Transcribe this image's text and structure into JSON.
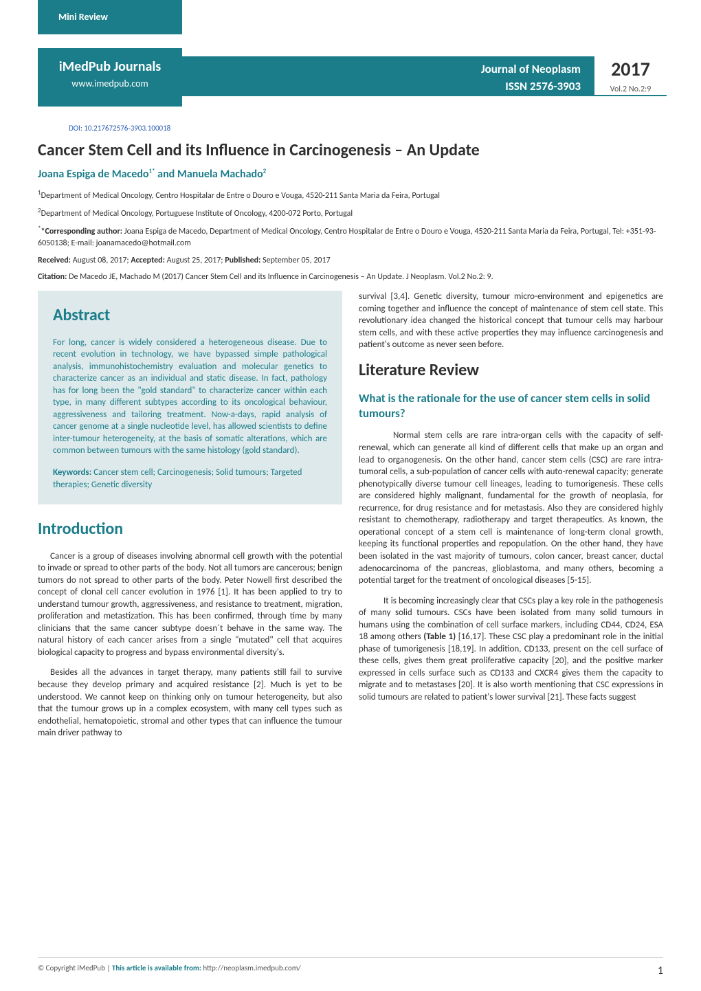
{
  "header": {
    "mini_review_label": "Mini Review",
    "publisher_name": "iMedPub Journals",
    "publisher_url": "www.imedpub.com",
    "journal_name": "Journal of Neoplasm",
    "issn_label": "ISSN 2576-3903",
    "year": "2017",
    "volume_issue": "Vol.2 No.2:9"
  },
  "doi": "DOI: 10.217672576-3903.100018",
  "title": "Cancer Stem Cell and its Influence in Carcinogenesis – An Update",
  "authors": "Joana Espiga de Macedo1* and Manuela Machado2",
  "affiliations": [
    "1Department of Medical Oncology, Centro Hospitalar de Entre o Douro e Vouga, 4520-211 Santa Maria da Feira, Portugal",
    "2Department of Medical Oncology, Portuguese Institute of Oncology, 4200-072 Porto, Portugal"
  ],
  "corresponding_label": "*Corresponding author:",
  "corresponding_text": " Joana Espiga de Macedo, Department of Medical Oncology, Centro Hospitalar de Entre o Douro e Vouga, 4520-211 Santa Maria da Feira, Portugal, Tel: +351-93-6050138; E-mail: joanamacedo@hotmail.com",
  "dates": {
    "received_label": "Received:",
    "received": " August 08, 2017; ",
    "accepted_label": "Accepted:",
    "accepted": " August 25, 2017; ",
    "published_label": "Published:",
    "published": " September 05, 2017"
  },
  "citation_label": "Citation:",
  "citation_text": " De Macedo JE, Machado M (2017) Cancer Stem Cell and its Influence in Carcinogenesis – An Update. J Neoplasm. Vol.2 No.2: 9.",
  "abstract": {
    "heading": "Abstract",
    "body": "For long, cancer is widely considered a heterogeneous disease. Due to recent evolution in technology, we have bypassed simple pathological analysis, immunohistochemistry evaluation and molecular genetics to characterize cancer as an individual and static disease. In fact, pathology has for long been the \"gold standard\" to characterize cancer within each type, in many different subtypes according to its oncological behaviour, aggressiveness and tailoring treatment. Now-a-days, rapid analysis of cancer genome at a single nucleotide level, has allowed scientists to define inter-tumour heterogeneity, at the basis of somatic alterations, which are common between tumours with the same histology (gold standard).",
    "keywords_label": "Keywords:",
    "keywords": " Cancer stem cell; Carcinogenesis; Solid tumours; Targeted therapies; Genetic diversity"
  },
  "intro": {
    "heading": "Introduction",
    "p1": "Cancer is a group of diseases involving abnormal cell growth with the potential to invade or spread to other parts of the body. Not all tumors are cancerous; benign tumors do not spread to other parts of the body. Peter Nowell first described the concept of clonal cell cancer evolution in 1976 [1]. It has been applied to try to understand tumour growth, aggressiveness, and resistance to treatment, migration, proliferation and metastization. This has been confirmed, through time by many clinicians that the same cancer subtype doesn´t behave in the same way. The natural history of each cancer arises from a single \"mutated\" cell that acquires biological capacity to progress and bypass environmental diversity's.",
    "p2": "Besides all the advances in target therapy, many patients still fail to survive because they develop primary and acquired resistance [2]. Much is yet to be understood. We cannot keep on thinking only on tumour heterogeneity, but also that the tumour grows up in a complex ecosystem, with many cell types such as endothelial, hematopoietic, stromal and other types that can influence the tumour main driver pathway to"
  },
  "right_top": "survival [3,4]. Genetic diversity, tumour micro-environment and epigenetics are coming together and influence the concept of maintenance of stem cell state. This revolutionary idea changed the historical concept that tumour cells may harbour stem cells, and with these active properties they may influence carcinogenesis and patient's outcome as never seen before.",
  "lit_review": {
    "heading": "Literature Review",
    "sub1": "What is the rationale for the use of cancer stem cells in solid tumours?",
    "p1": "Normal stem cells are rare intra-organ cells with the capacity of self-renewal, which can generate all kind of different cells that make up an organ and lead to organogenesis. On the other hand, cancer stem cells (CSC) are rare intra-tumoral cells, a sub-population of cancer cells with auto-renewal capacity; generate phenotypically diverse tumour cell lineages, leading to tumorigenesis. These cells are considered highly malignant, fundamental for the growth of neoplasia, for recurrence, for drug resistance and for metastasis. Also they are considered highly resistant to chemotherapy, radiotherapy and target therapeutics. As known, the operational concept of a stem cell is maintenance of long-term clonal growth, keeping its functional properties and repopulation. On the other hand, they have been isolated in the vast majority of tumours, colon cancer, breast cancer, ductal adenocarcinoma of the pancreas, glioblastoma, and many others, becoming a potential target for the treatment of oncological diseases [5-15].",
    "p2_pre": "It is becoming increasingly clear that CSCs play a key role in the pathogenesis of many solid tumours. CSCs have been isolated from many solid tumours in humans using the combination of cell surface markers, including CD44, CD24, ESA 18 among others ",
    "p2_bold": "(Table 1)",
    "p2_post": " [16,17]. These CSC play a predominant role in the initial phase of tumorigenesis [18,19]. In addition, CD133, present on the cell surface of these cells, gives them great proliferative capacity [20], and the positive marker expressed in cells surface such as CD133 and CXCR4 gives them the capacity to migrate and to metastases [20]. It is also worth mentioning that CSC expressions in solid tumours are related to patient's lower survival [21]. These facts suggest"
  },
  "footer": {
    "copyright": "© Copyright iMedPub | ",
    "availability_label": "This article is available from:",
    "availability_url": " http://neoplasm.imedpub.com/",
    "page_number": "1"
  },
  "colors": {
    "teal": "#1b7d89",
    "abstract_bg": "#dee9eb",
    "doi_link": "#2a5db0",
    "body_text": "#2e2e2e"
  }
}
